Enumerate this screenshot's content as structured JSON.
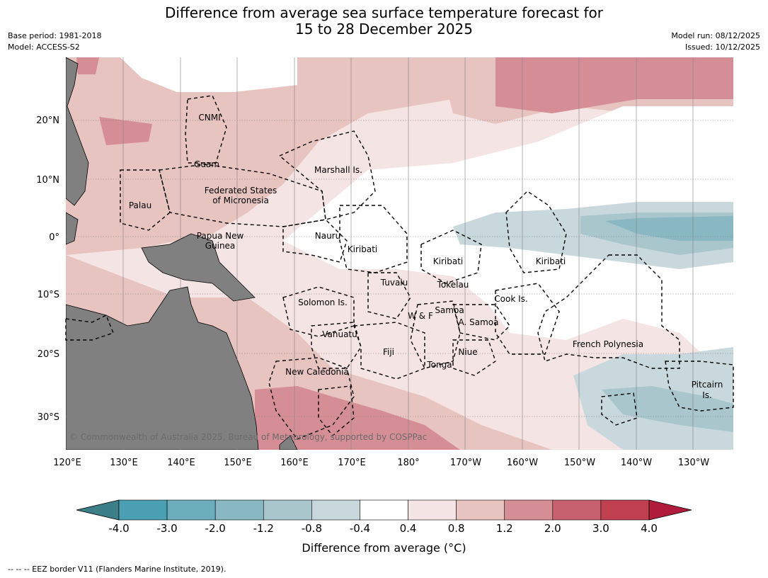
{
  "title_line1": "Difference from average sea surface temperature forecast for",
  "title_line2": "15 to 28 December 2025",
  "meta": {
    "base_period": "Base period: 1981-2018",
    "model": "Model: ACCESS-S2",
    "model_run": "Model run: 08/12/2025",
    "issued": "Issued: 10/12/2025"
  },
  "map": {
    "lon_ticks": [
      "120°E",
      "130°E",
      "140°E",
      "150°E",
      "160°E",
      "170°E",
      "180°",
      "170°W",
      "160°W",
      "150°W",
      "140°W",
      "130°W"
    ],
    "lat_ticks": [
      "20°N",
      "10°N",
      "0°",
      "10°S",
      "20°S",
      "30°S"
    ],
    "region_labels": [
      "CNMI",
      "Guam",
      "Marshall Is.",
      "Federated States",
      "of Micronesia",
      "Palau",
      "Papua New",
      "Guinea",
      "Nauru",
      "Kiribati",
      "Kiribati",
      "Kiribati",
      "Tuvalu",
      "Tokelau",
      "Cook Is.",
      "Solomon Is.",
      "Samoa",
      "W & F",
      "A. Samoa",
      "Vanuatu",
      "Fiji",
      "Niue",
      "French Polynesia",
      "Tonga",
      "New Caledonia",
      "Pitcairn",
      "Is."
    ],
    "copyright": "© Commonwealth of Australia 2025, Bureau of Meteorology, supported by COSPPac"
  },
  "colorbar": {
    "title": "Difference from average (°C)",
    "ticks": [
      "-4.0",
      "-3.0",
      "-2.0",
      "-1.2",
      "-0.8",
      "-0.4",
      "0.4",
      "0.8",
      "1.2",
      "2.0",
      "3.0",
      "4.0"
    ],
    "colors": [
      "#3d7f89",
      "#4aa0b2",
      "#6aadbb",
      "#89b7c2",
      "#a8c6cc",
      "#c8d8dd",
      "#ffffff",
      "#f4e4e3",
      "#e8c4c1",
      "#d68e96",
      "#c8626f",
      "#c1404f",
      "#b01c3b"
    ]
  },
  "footer": "--  --  -- EEZ border V11 (Flanders Marine Institute, 2019)."
}
